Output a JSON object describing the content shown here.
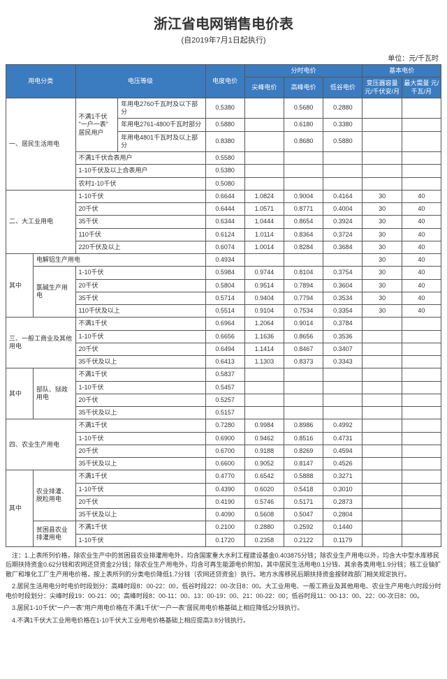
{
  "title": "浙江省电网销售电价表",
  "subtitle": "(自2019年7月1日起执行)",
  "unit_label": "单位：元/千瓦时",
  "header": {
    "category": "用电分类",
    "voltage": "电压等级",
    "base_price": "电度电价",
    "time_group": "分时电价",
    "peak": "尖峰电价",
    "high": "高峰电价",
    "low": "低谷电价",
    "basic_group": "基本电价",
    "cap": "变压器容量 元/千伏安/月",
    "demand": "最大需量 元/千瓦/月"
  },
  "sections": {
    "residential": {
      "label": "一、居民生活用电",
      "tier_group": "不满1千伏 \"一户一表\" 居民用户",
      "tiers": [
        {
          "l": "年用电2760千瓦时及以下部分",
          "b": "0.5380",
          "h": "0.5680",
          "v": "0.2880"
        },
        {
          "l": "年用电2761-4800千瓦时部分",
          "b": "0.5880",
          "h": "0.6180",
          "v": "0.3380"
        },
        {
          "l": "年用电4801千瓦时及以上部分",
          "b": "0.8380",
          "h": "0.8680",
          "v": "0.5880"
        }
      ],
      "other": [
        {
          "l": "不满1千伏合表用户",
          "b": "0.5580"
        },
        {
          "l": "1-10千伏及以上合表用户",
          "b": "0.5380"
        },
        {
          "l": "农村1-10千伏",
          "b": "0.5080"
        }
      ]
    },
    "large_ind": {
      "label": "二、大工业用电",
      "rows": [
        {
          "l": "1-10千伏",
          "b": "0.6644",
          "p": "1.0824",
          "h": "0.9004",
          "v": "0.4164",
          "c": "30",
          "d": "40"
        },
        {
          "l": "20千伏",
          "b": "0.6444",
          "p": "1.0571",
          "h": "0.8771",
          "v": "0.4004",
          "c": "30",
          "d": "40"
        },
        {
          "l": "35千伏",
          "b": "0.6344",
          "p": "1.0444",
          "h": "0.8654",
          "v": "0.3924",
          "c": "30",
          "d": "40"
        },
        {
          "l": "110千伏",
          "b": "0.6124",
          "p": "1.0114",
          "h": "0.8364",
          "v": "0.3724",
          "c": "30",
          "d": "40"
        },
        {
          "l": "220千伏及以上",
          "b": "0.6074",
          "p": "1.0014",
          "h": "0.8284",
          "v": "0.3684",
          "c": "30",
          "d": "40"
        }
      ],
      "qizhong": "其中",
      "elec_al": {
        "l": "电解铝生产用电",
        "b": "0.4934",
        "c": "30",
        "d": "40"
      },
      "chloralkali": {
        "label": "氯碱生产用电",
        "rows": [
          {
            "l": "1-10千伏",
            "b": "0.5984",
            "p": "0.9744",
            "h": "0.8104",
            "v": "0.3754",
            "c": "30",
            "d": "40"
          },
          {
            "l": "20千伏",
            "b": "0.5804",
            "p": "0.9514",
            "h": "0.7894",
            "v": "0.3604",
            "c": "30",
            "d": "40"
          },
          {
            "l": "35千伏",
            "b": "0.5714",
            "p": "0.9404",
            "h": "0.7794",
            "v": "0.3534",
            "c": "30",
            "d": "40"
          },
          {
            "l": "110千伏及以上",
            "b": "0.5514",
            "p": "0.9104",
            "h": "0.7534",
            "v": "0.3354",
            "c": "30",
            "d": "40"
          }
        ]
      }
    },
    "commercial": {
      "label": "三、一般工商业及其他用电",
      "rows": [
        {
          "l": "不满1千伏",
          "b": "0.6964",
          "p": "1.2064",
          "h": "0.9014",
          "v": "0.3784"
        },
        {
          "l": "1-10千伏",
          "b": "0.6656",
          "p": "1.1636",
          "h": "0.8656",
          "v": "0.3536"
        },
        {
          "l": "20千伏",
          "b": "0.6494",
          "p": "1.1414",
          "h": "0.8467",
          "v": "0.3407"
        },
        {
          "l": "35千伏及以上",
          "b": "0.6413",
          "p": "1.1303",
          "h": "0.8373",
          "v": "0.3343"
        }
      ],
      "qizhong": "其中",
      "army": {
        "label": "部队、狱政用电",
        "rows": [
          {
            "l": "不满1千伏",
            "b": "0.5837"
          },
          {
            "l": "1-10千伏",
            "b": "0.5457"
          },
          {
            "l": "20千伏",
            "b": "0.5257"
          },
          {
            "l": "35千伏及以上",
            "b": "0.5157"
          }
        ]
      }
    },
    "agri": {
      "label": "四、农业生产用电",
      "rows": [
        {
          "l": "不满1千伏",
          "b": "0.7280",
          "p": "0.9984",
          "h": "0.8986",
          "v": "0.4992"
        },
        {
          "l": "1-10千伏",
          "b": "0.6900",
          "p": "0.9462",
          "h": "0.8516",
          "v": "0.4731"
        },
        {
          "l": "20千伏",
          "b": "0.6700",
          "p": "0.9188",
          "h": "0.8269",
          "v": "0.4594"
        },
        {
          "l": "35千伏及以上",
          "b": "0.6600",
          "p": "0.9052",
          "h": "0.8147",
          "v": "0.4526"
        }
      ],
      "qizhong": "其中",
      "irrigation": {
        "label": "农业排灌、脱粒用电",
        "rows": [
          {
            "l": "不满1千伏",
            "b": "0.4770",
            "p": "0.6542",
            "h": "0.5888",
            "v": "0.3271"
          },
          {
            "l": "1-10千伏",
            "b": "0.4390",
            "p": "0.6020",
            "h": "0.5418",
            "v": "0.3010"
          },
          {
            "l": "20千伏",
            "b": "0.4190",
            "p": "0.5746",
            "h": "0.5171",
            "v": "0.2873"
          },
          {
            "l": "35千伏及以上",
            "b": "0.4090",
            "p": "0.5608",
            "h": "0.5047",
            "v": "0.2804"
          }
        ]
      },
      "poverty": {
        "label": "贫困县农业排灌用电",
        "rows": [
          {
            "l": "不满1千伏",
            "b": "0.2100",
            "p": "0.2880",
            "h": "0.2592",
            "v": "0.1440"
          },
          {
            "l": "1-10千伏",
            "b": "0.1720",
            "p": "0.2358",
            "h": "0.2122",
            "v": "0.1179"
          }
        ]
      }
    }
  },
  "notes": [
    "注：1.上表所列价格，除农业生产中的贫困县农业排灌用电外，均含国家重大水利工程建设基金0.403875分钱；除农业生产用电以外，均含大中型水库移民后期扶持资金0.62分钱和农网还贷资金2分钱；除农业生产用电外，均含可再生能源电价附加，其中居民生活用电0.1分钱、其余各类用电1.9分钱；核工业铀扩散厂和堆化工厂生产用电价格，按上表所列的分类电价降低1.7分钱（农网还贷资金）执行。地方水库移民后期扶持资金按财政部门相关规定执行。",
    "2.居民生活用电分时电价时段划分：高峰时段8：00-22：00，低谷时段22：00-次日8：00。大工业用电、一般工商业及其他用电、农业生产用电六时段分时电价时段划分：尖峰时段19：00-21：00；高峰时段8：00-11：00、13：00-19：00、21：00-22：00；低谷时段11：00-13：00、22：00-次日8：00。",
    "3.居民1-10千伏\"一户一表\"用户用电价格在不满1千伏\"一户一表\"居民用电价格基础上相应降低2分钱执行。",
    "4.不满1千伏大工业用电价格在1-10千伏大工业用电价格基础上相应提高3.8分钱执行。"
  ],
  "colwidths": {
    "c1": 36,
    "c2": 56,
    "c3": 56,
    "c4": 116,
    "num": 52
  }
}
